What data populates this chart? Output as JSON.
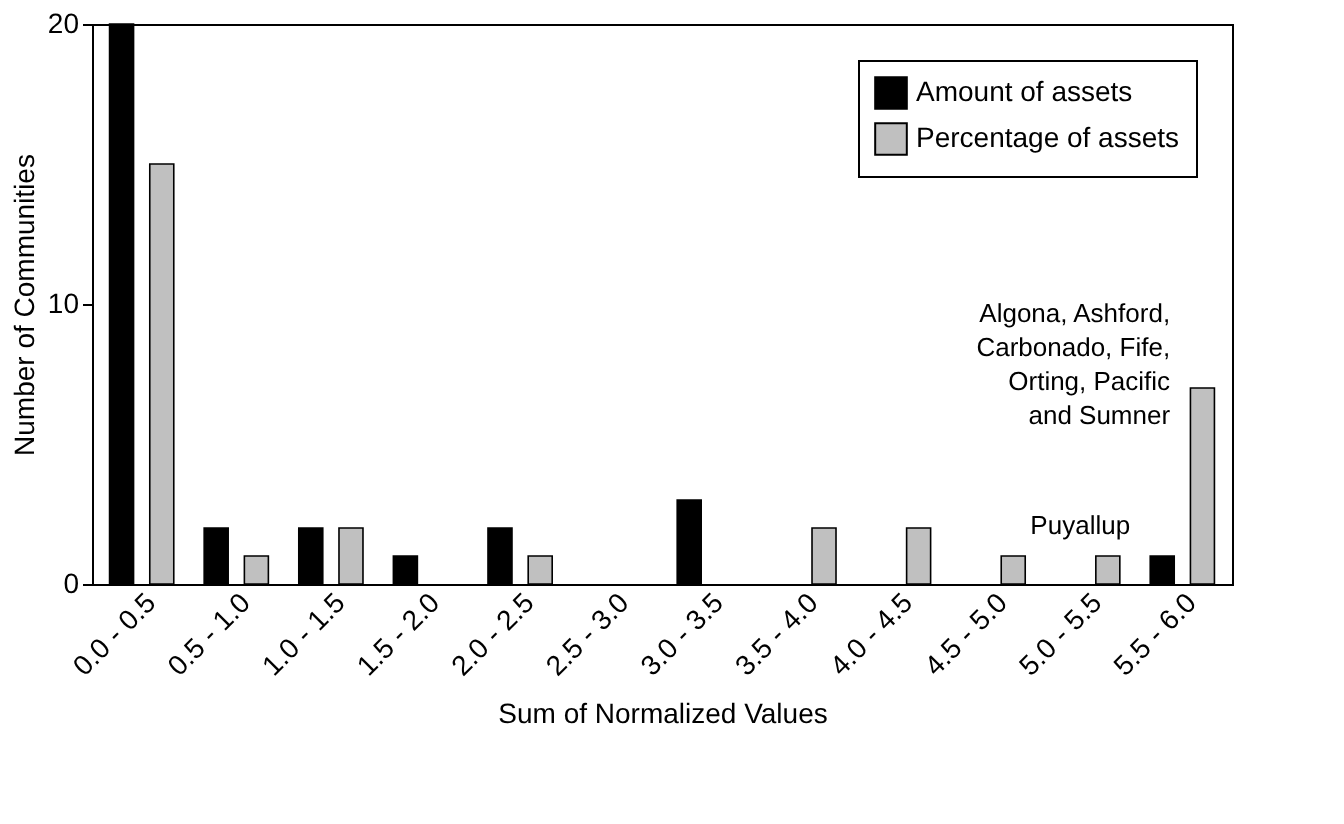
{
  "chart_data": {
    "type": "bar",
    "xlabel": "Sum of Normalized Values",
    "ylabel": "Number of Communities",
    "categories": [
      "0.0 - 0.5",
      "0.5 - 1.0",
      "1.0 - 1.5",
      "1.5 - 2.0",
      "2.0 - 2.5",
      "2.5 - 3.0",
      "3.0 - 3.5",
      "3.5 - 4.0",
      "4.0 - 4.5",
      "4.5 - 5.0",
      "5.0 - 5.5",
      "5.5 - 6.0"
    ],
    "series": [
      {
        "name": "Amount of assets",
        "color": "#000000",
        "values": [
          20,
          2,
          2,
          1,
          2,
          0,
          3,
          0,
          0,
          0,
          0,
          1
        ]
      },
      {
        "name": "Percentage of assets",
        "color": "#c0c0c0",
        "values": [
          15,
          1,
          2,
          0,
          1,
          0,
          0,
          2,
          2,
          1,
          1,
          7
        ]
      }
    ],
    "ylim": [
      0,
      20
    ],
    "yticks": [
      0,
      10,
      20
    ],
    "grid": false,
    "legend": "top right",
    "annotations": [
      {
        "text": "Algona, Ashford, Carbonado, Fife, Orting, Pacific and Sumner",
        "x": "5.5 - 6.0",
        "y": 7
      },
      {
        "text": "Puyallup",
        "x": "5.5 - 6.0",
        "y": 1
      }
    ]
  }
}
